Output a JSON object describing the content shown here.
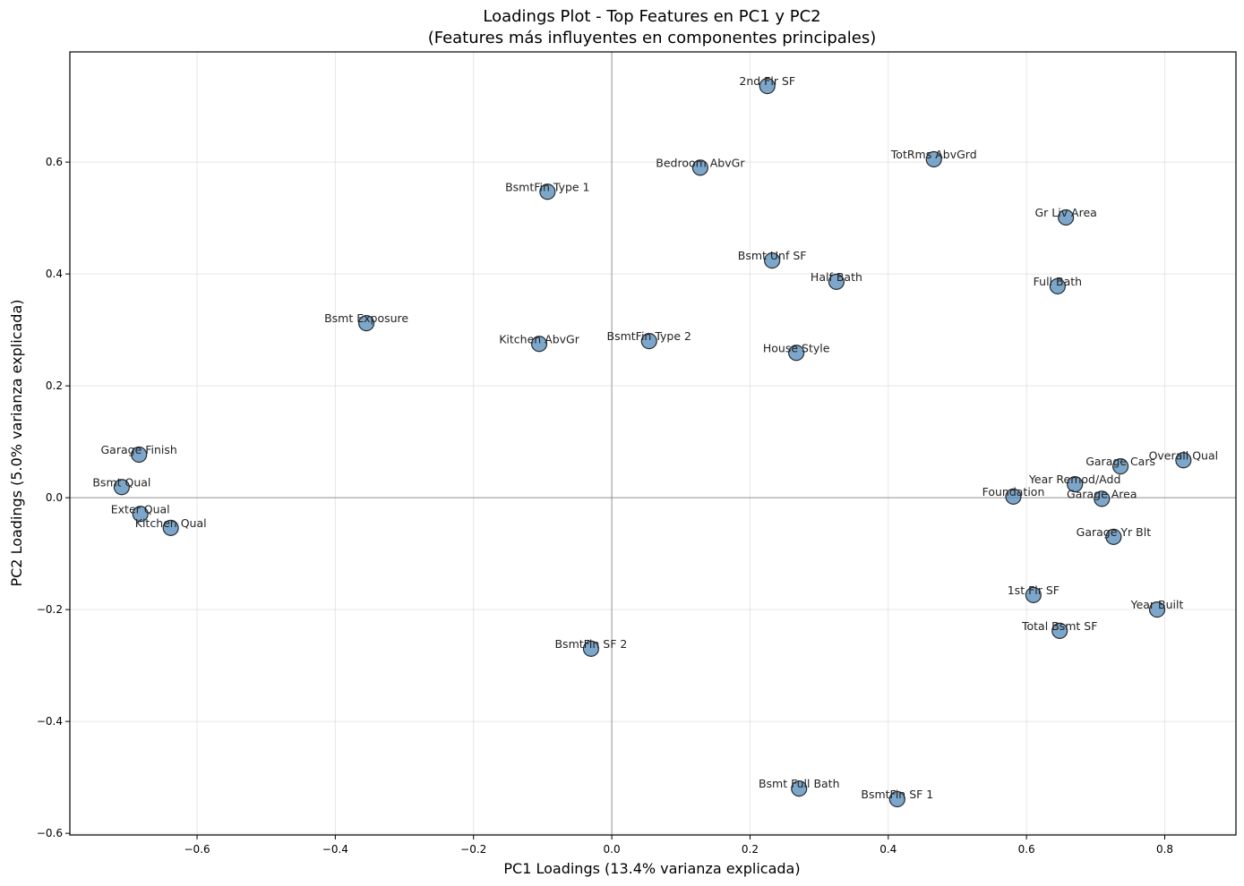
{
  "chart_data": {
    "type": "scatter",
    "title": "Loadings Plot - Top Features en PC1 y PC2",
    "subtitle": "(Features más influyentes en componentes principales)",
    "xlabel": "PC1 Loadings (13.4% varianza explicada)",
    "ylabel": "PC2 Loadings (5.0% varianza explicada)",
    "xlim": [
      -0.784,
      0.903
    ],
    "ylim": [
      -0.603,
      0.797
    ],
    "xticks": [
      -0.6,
      -0.4,
      -0.2,
      0.0,
      0.2,
      0.4,
      0.6,
      0.8
    ],
    "yticks": [
      -0.6,
      -0.4,
      -0.2,
      0.0,
      0.2,
      0.4,
      0.6
    ],
    "xtick_labels": [
      "−0.6",
      "−0.4",
      "−0.2",
      "0.0",
      "0.2",
      "0.4",
      "0.6",
      "0.8"
    ],
    "ytick_labels": [
      "−0.6",
      "−0.4",
      "−0.2",
      "0.0",
      "0.2",
      "0.4",
      "0.6"
    ],
    "grid": true,
    "zero_lines": true,
    "marker_color": "#4682b4",
    "points": [
      {
        "label": "2nd Flr SF",
        "x": 0.225,
        "y": 0.736
      },
      {
        "label": "Bedroom AbvGr",
        "x": 0.128,
        "y": 0.59
      },
      {
        "label": "BsmtFin Type 1",
        "x": -0.093,
        "y": 0.547
      },
      {
        "label": "TotRms AbvGrd",
        "x": 0.466,
        "y": 0.605
      },
      {
        "label": "Gr Liv Area",
        "x": 0.657,
        "y": 0.501
      },
      {
        "label": "Bsmt Unf SF",
        "x": 0.232,
        "y": 0.424
      },
      {
        "label": "Half Bath",
        "x": 0.325,
        "y": 0.386
      },
      {
        "label": "Full Bath",
        "x": 0.645,
        "y": 0.378
      },
      {
        "label": "Bsmt Exposure",
        "x": -0.355,
        "y": 0.312
      },
      {
        "label": "Kitchen AbvGr",
        "x": -0.105,
        "y": 0.275
      },
      {
        "label": "BsmtFin Type 2",
        "x": 0.054,
        "y": 0.28
      },
      {
        "label": "House Style",
        "x": 0.267,
        "y": 0.259
      },
      {
        "label": "Garage Finish",
        "x": -0.684,
        "y": 0.077
      },
      {
        "label": "Bsmt Qual",
        "x": -0.709,
        "y": 0.019
      },
      {
        "label": "Exter Qual",
        "x": -0.682,
        "y": -0.029
      },
      {
        "label": "Kitchen Qual",
        "x": -0.638,
        "y": -0.054
      },
      {
        "label": "Overall Qual",
        "x": 0.827,
        "y": 0.067
      },
      {
        "label": "Garage Cars",
        "x": 0.736,
        "y": 0.056
      },
      {
        "label": "Year Remod/Add",
        "x": 0.67,
        "y": 0.024
      },
      {
        "label": "Foundation",
        "x": 0.581,
        "y": 0.002
      },
      {
        "label": "Garage Area",
        "x": 0.709,
        "y": -0.002
      },
      {
        "label": "Garage Yr Blt",
        "x": 0.726,
        "y": -0.07
      },
      {
        "label": "1st Flr SF",
        "x": 0.61,
        "y": -0.174
      },
      {
        "label": "Year Built",
        "x": 0.789,
        "y": -0.2
      },
      {
        "label": "Total Bsmt SF",
        "x": 0.648,
        "y": -0.238
      },
      {
        "label": "BsmtFin SF 2",
        "x": -0.03,
        "y": -0.27
      },
      {
        "label": "Bsmt Full Bath",
        "x": 0.271,
        "y": -0.52
      },
      {
        "label": "BsmtFin SF 1",
        "x": 0.413,
        "y": -0.539
      }
    ]
  }
}
